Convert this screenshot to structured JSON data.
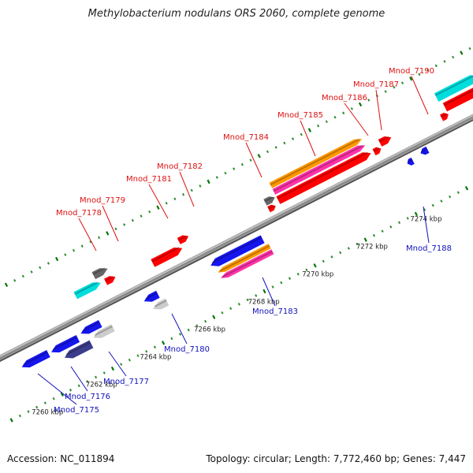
{
  "title": "Methylobacterium nodulans ORS 2060, complete genome",
  "footer": {
    "accession": "Accession: NC_011894",
    "summary": "Topology: circular; Length: 7,772,460 bp; Genes: 7,447"
  },
  "colors": {
    "backbone": "#8a8a8a",
    "tick": "#2e8b2e",
    "forward_label": "#dd1111",
    "reverse_label": "#1111bb",
    "red": "#ff0000",
    "blue": "#1515ee",
    "cyan": "#00dddd",
    "gray": "#666666",
    "lightgray": "#cccccc",
    "navy": "#3c3c8c",
    "orange": "#ff9900",
    "pink": "#ff33aa"
  },
  "scale_labels": [
    "7260 kbp",
    "7262 kbp",
    "7264 kbp",
    "7266 kbp",
    "7268 kbp",
    "7270 kbp",
    "7272 kbp",
    "7274 kbp"
  ],
  "forward_genes": [
    {
      "label": "Mnod_7178"
    },
    {
      "label": "Mnod_7179"
    },
    {
      "label": "Mnod_7181"
    },
    {
      "label": "Mnod_7182"
    },
    {
      "label": "Mnod_7184"
    },
    {
      "label": "Mnod_7185"
    },
    {
      "label": "Mnod_7186"
    },
    {
      "label": "Mnod_7187"
    },
    {
      "label": "Mnod_7190"
    }
  ],
  "reverse_genes": [
    {
      "label": "Mnod_7175"
    },
    {
      "label": "Mnod_7176"
    },
    {
      "label": "Mnod_7177"
    },
    {
      "label": "Mnod_7180"
    },
    {
      "label": "Mnod_7183"
    },
    {
      "label": "Mnod_7188"
    }
  ]
}
